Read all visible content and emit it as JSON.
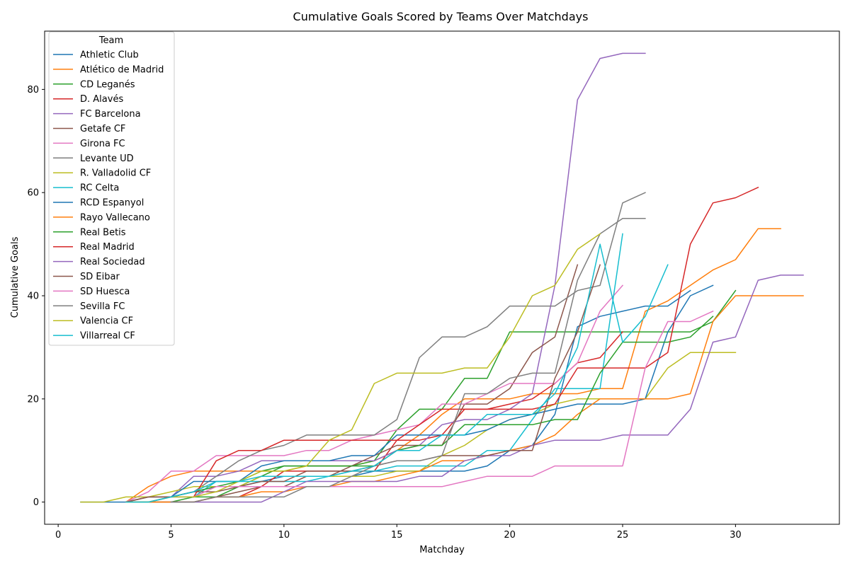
{
  "chart_data": {
    "type": "line",
    "title": "Cumulative Goals Scored by Teams Over Matchdays",
    "xlabel": "Matchday",
    "ylabel": "Cumulative Goals",
    "xlim": [
      -0.6,
      34.6
    ],
    "ylim": [
      -4.3,
      91.3
    ],
    "xticks": [
      0,
      5,
      10,
      15,
      20,
      25,
      30
    ],
    "yticks": [
      0,
      20,
      40,
      60,
      80
    ],
    "grid": false,
    "legend": {
      "title": "Team",
      "placement": "top-left"
    },
    "series": [
      {
        "name": "Athletic Club",
        "color": "#1f77b4",
        "x": [
          1,
          2,
          3,
          4,
          5,
          6,
          7,
          8,
          9,
          10,
          11,
          12,
          13,
          14,
          15,
          16,
          17,
          18,
          19,
          20,
          21,
          22,
          23,
          24,
          25,
          26,
          27,
          28
        ],
        "values": [
          0,
          0,
          0,
          1,
          1,
          2,
          3,
          3,
          4,
          5,
          5,
          5,
          5,
          6,
          6,
          6,
          6,
          6,
          7,
          10,
          11,
          17,
          34,
          36,
          37,
          38,
          38,
          41
        ]
      },
      {
        "name": "Atlético de Madrid",
        "color": "#ff7f0e",
        "x": [
          3,
          4,
          5,
          6,
          7,
          8,
          9,
          10,
          11,
          12,
          13,
          14,
          15,
          16,
          17,
          18,
          19,
          20,
          21,
          22,
          23,
          24,
          25,
          26,
          27,
          28,
          29,
          30,
          31,
          32
        ],
        "values": [
          0,
          3,
          5,
          6,
          6,
          6,
          6,
          6,
          7,
          7,
          7,
          8,
          10,
          13,
          17,
          20,
          20,
          20,
          21,
          21,
          21,
          22,
          22,
          37,
          39,
          42,
          45,
          47,
          53,
          53
        ]
      },
      {
        "name": "CD Leganés",
        "color": "#2ca02c",
        "x": [
          4,
          5,
          6,
          7,
          8,
          9,
          10,
          11,
          12,
          13,
          14,
          15,
          16,
          17,
          18,
          19,
          20,
          21,
          22,
          23,
          24,
          25,
          26,
          27,
          28,
          29,
          30
        ],
        "values": [
          0,
          0,
          1,
          1,
          3,
          5,
          7,
          7,
          7,
          7,
          8,
          14,
          18,
          18,
          24,
          24,
          33,
          33,
          33,
          33,
          33,
          33,
          33,
          33,
          33,
          35,
          41
        ]
      },
      {
        "name": "D. Alavés",
        "color": "#d62728",
        "x": [
          4,
          5,
          6,
          7,
          8,
          9,
          10,
          11,
          12,
          13,
          14,
          15,
          16,
          17,
          18,
          19,
          20,
          21,
          22,
          23,
          24,
          25
        ],
        "values": [
          0,
          0,
          0,
          1,
          1,
          3,
          6,
          6,
          6,
          6,
          6,
          12,
          12,
          13,
          18,
          18,
          19,
          20,
          23,
          27,
          28,
          33
        ]
      },
      {
        "name": "FC Barcelona",
        "color": "#9467bd",
        "x": [
          3,
          4,
          5,
          6,
          7,
          8,
          9,
          10,
          11,
          12,
          13,
          14,
          15,
          16,
          17,
          18,
          19,
          20,
          21,
          22,
          23,
          24,
          25,
          26
        ],
        "values": [
          0,
          1,
          1,
          5,
          5,
          6,
          8,
          8,
          8,
          8,
          8,
          8,
          10,
          11,
          15,
          16,
          16,
          18,
          21,
          42,
          78,
          86,
          87,
          87
        ]
      },
      {
        "name": "Getafe CF",
        "color": "#8c564b",
        "x": [
          3,
          4,
          5,
          6,
          7,
          8,
          9,
          10,
          11,
          12,
          13,
          14,
          15,
          16,
          17,
          18,
          19,
          20,
          21,
          22,
          23
        ],
        "values": [
          0,
          0,
          0,
          0,
          1,
          2,
          3,
          3,
          5,
          5,
          7,
          9,
          11,
          11,
          11,
          19,
          19,
          22,
          29,
          32,
          46
        ]
      },
      {
        "name": "Girona FC",
        "color": "#e377c2",
        "x": [
          3,
          4,
          5,
          6,
          7,
          8,
          9,
          10,
          11,
          12,
          13,
          14,
          15,
          16,
          17,
          18,
          19,
          20,
          21,
          22,
          23,
          24,
          25
        ],
        "values": [
          0,
          2,
          6,
          6,
          9,
          9,
          9,
          9,
          10,
          10,
          12,
          13,
          14,
          15,
          19,
          19,
          21,
          23,
          23,
          23,
          27,
          37,
          42
        ]
      },
      {
        "name": "Levante UD",
        "color": "#7f7f7f",
        "x": [
          3,
          4,
          5,
          6,
          7,
          8,
          9,
          10,
          11,
          12,
          13,
          14,
          15,
          16,
          17,
          18,
          19,
          20,
          21,
          22,
          23,
          24,
          25,
          26
        ],
        "values": [
          0,
          1,
          1,
          2,
          5,
          8,
          10,
          11,
          13,
          13,
          13,
          13,
          16,
          28,
          32,
          32,
          34,
          38,
          38,
          38,
          41,
          42,
          58,
          60
        ]
      },
      {
        "name": "R. Valladolid CF",
        "color": "#bcbd22",
        "x": [
          1,
          2,
          3,
          4,
          5,
          6,
          7,
          8,
          9,
          10,
          11,
          12,
          13,
          14,
          15,
          16,
          17,
          18,
          19,
          20,
          21,
          22,
          23,
          24,
          25,
          26,
          27,
          28,
          29,
          30
        ],
        "values": [
          0,
          0,
          1,
          1,
          2,
          3,
          3,
          3,
          5,
          5,
          5,
          5,
          5,
          5,
          6,
          6,
          9,
          11,
          14,
          16,
          17,
          19,
          20,
          20,
          20,
          20,
          26,
          29,
          29,
          29
        ]
      },
      {
        "name": "RC Celta",
        "color": "#17becf",
        "x": [
          5,
          6,
          7,
          8,
          9,
          10,
          11,
          12,
          13,
          14,
          15,
          16,
          17,
          18,
          19,
          20,
          21,
          22,
          23,
          24,
          25
        ],
        "values": [
          1,
          1,
          4,
          4,
          4,
          4,
          4,
          5,
          6,
          6,
          7,
          7,
          7,
          7,
          10,
          10,
          16,
          22,
          22,
          22,
          52
        ]
      },
      {
        "name": "RCD Espanyol",
        "color": "#1f77b4",
        "x": [
          4,
          5,
          6,
          7,
          8,
          9,
          10,
          11,
          12,
          13,
          14,
          15,
          16,
          17,
          18,
          19,
          20,
          21,
          22,
          23,
          24,
          25,
          26,
          27,
          28,
          29
        ],
        "values": [
          0,
          1,
          4,
          4,
          4,
          7,
          8,
          8,
          8,
          9,
          9,
          13,
          13,
          13,
          13,
          14,
          16,
          17,
          18,
          19,
          19,
          19,
          20,
          33,
          40,
          42
        ]
      },
      {
        "name": "Rayo Vallecano",
        "color": "#ff7f0e",
        "x": [
          3,
          4,
          5,
          6,
          7,
          8,
          9,
          10,
          11,
          12,
          13,
          14,
          15,
          16,
          17,
          18,
          19,
          20,
          21,
          22,
          23,
          24,
          25,
          26,
          27,
          28,
          29,
          30,
          31,
          32,
          33
        ],
        "values": [
          0,
          0,
          0,
          0,
          1,
          1,
          2,
          2,
          3,
          3,
          4,
          4,
          5,
          6,
          8,
          8,
          9,
          10,
          11,
          13,
          17,
          20,
          20,
          20,
          20,
          21,
          35,
          40,
          40,
          40,
          40
        ]
      },
      {
        "name": "Real Betis",
        "color": "#2ca02c",
        "x": [
          3,
          4,
          5,
          6,
          7,
          8,
          9,
          10,
          11,
          12,
          13,
          14,
          15,
          16,
          17,
          18,
          19,
          20,
          21,
          22,
          23,
          24,
          25,
          26,
          27,
          28,
          29
        ],
        "values": [
          0,
          0,
          1,
          2,
          3,
          4,
          6,
          7,
          7,
          7,
          7,
          7,
          10,
          11,
          11,
          15,
          15,
          15,
          15,
          16,
          16,
          25,
          31,
          31,
          31,
          32,
          36
        ]
      },
      {
        "name": "Real Madrid",
        "color": "#d62728",
        "x": [
          6,
          7,
          8,
          9,
          10,
          11,
          12,
          13,
          14,
          15,
          16,
          17,
          18,
          19,
          20,
          21,
          22,
          23,
          24,
          25,
          26,
          27,
          28,
          29,
          30,
          31
        ],
        "values": [
          1,
          8,
          10,
          10,
          12,
          12,
          12,
          12,
          12,
          12,
          15,
          18,
          18,
          18,
          18,
          18,
          19,
          26,
          26,
          26,
          26,
          29,
          50,
          58,
          59,
          61
        ]
      },
      {
        "name": "Real Sociedad",
        "color": "#9467bd",
        "x": [
          5,
          6,
          7,
          8,
          9,
          10,
          11,
          12,
          13,
          14,
          15,
          16,
          17,
          18,
          19,
          20,
          21,
          22,
          23,
          24,
          25,
          26,
          27,
          28,
          29,
          30,
          31,
          32,
          33
        ],
        "values": [
          0,
          0,
          0,
          0,
          0,
          2,
          4,
          4,
          4,
          4,
          4,
          5,
          5,
          8,
          9,
          9,
          11,
          12,
          12,
          12,
          13,
          13,
          13,
          18,
          31,
          32,
          43,
          44,
          44
        ]
      },
      {
        "name": "SD Eibar",
        "color": "#8c564b",
        "x": [
          3,
          4,
          5,
          6,
          7,
          8,
          9,
          10,
          11,
          12,
          13,
          14,
          15,
          16,
          17,
          18,
          19,
          20,
          21,
          22,
          23,
          24
        ],
        "values": [
          0,
          1,
          1,
          2,
          2,
          3,
          4,
          4,
          6,
          6,
          6,
          7,
          8,
          8,
          9,
          9,
          9,
          10,
          10,
          24,
          33,
          46
        ]
      },
      {
        "name": "SD Huesca",
        "color": "#e377c2",
        "x": [
          4,
          5,
          6,
          7,
          8,
          9,
          10,
          11,
          12,
          13,
          14,
          15,
          16,
          17,
          18,
          19,
          20,
          21,
          22,
          23,
          24,
          25,
          26,
          27,
          28,
          29
        ],
        "values": [
          0,
          1,
          1,
          3,
          3,
          3,
          3,
          3,
          3,
          3,
          3,
          3,
          3,
          3,
          4,
          5,
          5,
          5,
          7,
          7,
          7,
          7,
          26,
          35,
          35,
          37
        ]
      },
      {
        "name": "Sevilla FC",
        "color": "#7f7f7f",
        "x": [
          5,
          6,
          7,
          8,
          9,
          10,
          11,
          12,
          13,
          14,
          15,
          16,
          17,
          18,
          19,
          20,
          21,
          22,
          23,
          24,
          25,
          26
        ],
        "values": [
          0,
          0,
          1,
          1,
          1,
          1,
          3,
          3,
          5,
          7,
          8,
          8,
          9,
          21,
          21,
          24,
          25,
          25,
          43,
          52,
          55,
          55
        ]
      },
      {
        "name": "Valencia CF",
        "color": "#bcbd22",
        "x": [
          3,
          4,
          5,
          6,
          7,
          8,
          9,
          10,
          11,
          12,
          13,
          14,
          15,
          16,
          17,
          18,
          19,
          20,
          21,
          22,
          23,
          24
        ],
        "values": [
          0,
          0,
          1,
          1,
          2,
          4,
          6,
          6,
          7,
          12,
          14,
          23,
          25,
          25,
          25,
          26,
          26,
          32,
          40,
          42,
          49,
          52
        ]
      },
      {
        "name": "Villarreal CF",
        "color": "#17becf",
        "x": [
          3,
          4,
          5,
          6,
          7,
          8,
          9,
          10,
          11,
          12,
          13,
          14,
          15,
          16,
          17,
          18,
          19,
          20,
          21,
          22,
          23,
          24,
          25,
          26,
          27
        ],
        "values": [
          0,
          0,
          1,
          2,
          4,
          4,
          5,
          5,
          5,
          5,
          6,
          7,
          10,
          10,
          13,
          13,
          17,
          17,
          17,
          21,
          30,
          50,
          31,
          36,
          46
        ]
      }
    ]
  }
}
